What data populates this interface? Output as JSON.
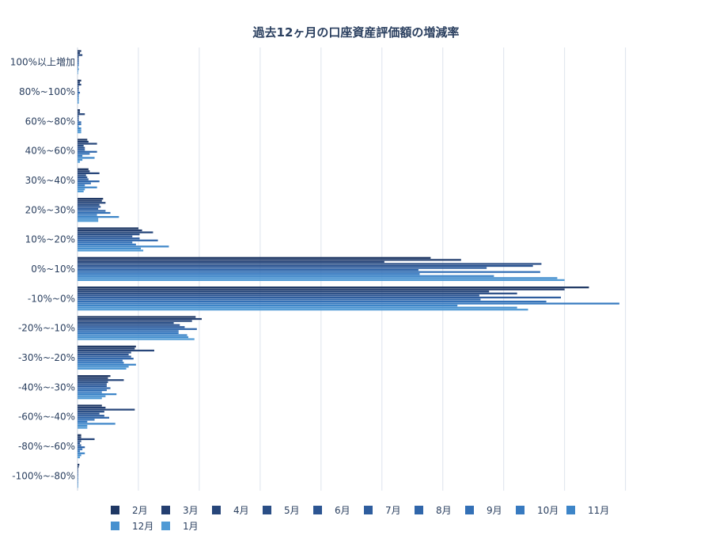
{
  "chart_data": {
    "type": "bar",
    "orientation": "horizontal",
    "title": "過去12ヶ月の口座資産評価額の増減率",
    "xlabel": "",
    "ylabel": "",
    "grid": true,
    "legend_position": "bottom",
    "categories": [
      "100%以上増加",
      "80%~100%",
      "60%~80%",
      "40%~60%",
      "30%~40%",
      "20%~30%",
      "10%~20%",
      "0%~10%",
      "-10%~0%",
      "-20%~-10%",
      "-30%~-20%",
      "-40%~-30%",
      "-60%~-40%",
      "-80%~-60%",
      "-100%~-80%"
    ],
    "series": [
      {
        "name": "2月",
        "color": "#1f3864",
        "values": [
          0.3,
          0.3,
          0.2,
          0.8,
          0.9,
          2.1,
          5.0,
          29.0,
          42.0,
          9.7,
          4.8,
          2.7,
          2.0,
          0.3,
          0.15
        ]
      },
      {
        "name": "3月",
        "color": "#243f70",
        "values": [
          0.2,
          0.2,
          0.2,
          0.9,
          1.0,
          2.0,
          5.3,
          31.5,
          40.0,
          10.2,
          4.7,
          2.5,
          2.3,
          0.3,
          0.1
        ]
      },
      {
        "name": "4月",
        "color": "#27467a",
        "values": [
          0.4,
          0.3,
          0.6,
          1.6,
          1.8,
          2.3,
          6.2,
          25.2,
          33.8,
          9.4,
          6.3,
          3.8,
          4.7,
          1.4,
          0.05
        ]
      },
      {
        "name": "5月",
        "color": "#2a4e86",
        "values": [
          0.1,
          0.1,
          0.1,
          0.5,
          0.7,
          1.8,
          5.1,
          38.1,
          36.1,
          7.9,
          4.4,
          2.5,
          2.2,
          0.3,
          0.05
        ]
      },
      {
        "name": "6月",
        "color": "#2c5592",
        "values": [
          0.1,
          0.1,
          0.1,
          0.6,
          0.8,
          1.9,
          4.5,
          37.4,
          33.0,
          8.4,
          4.2,
          2.4,
          1.8,
          0.2,
          0.05
        ]
      },
      {
        "name": "7月",
        "color": "#2e5d9e",
        "values": [
          0.1,
          0.1,
          0.1,
          0.6,
          0.9,
          1.7,
          5.1,
          33.6,
          39.7,
          8.8,
          4.4,
          2.4,
          2.2,
          0.3,
          0.05
        ]
      },
      {
        "name": "8月",
        "color": "#3066aa",
        "values": [
          0.1,
          0.2,
          0.3,
          1.6,
          1.8,
          2.3,
          6.6,
          28.0,
          33.1,
          9.8,
          4.6,
          2.7,
          2.6,
          0.6,
          0.05
        ]
      },
      {
        "name": "9月",
        "color": "#3370b6",
        "values": [
          0.1,
          0.1,
          0.3,
          1.0,
          1.1,
          2.7,
          4.5,
          38.0,
          38.5,
          8.3,
          3.7,
          2.4,
          1.4,
          0.4,
          0.05
        ]
      },
      {
        "name": "10月",
        "color": "#377ac0",
        "values": [
          0.05,
          0.1,
          0.1,
          0.4,
          0.6,
          1.6,
          4.8,
          28.1,
          44.5,
          8.3,
          3.8,
          2.0,
          0.8,
          0.2,
          0.05
        ]
      },
      {
        "name": "11月",
        "color": "#3d85c8",
        "values": [
          0.1,
          0.1,
          0.3,
          1.4,
          1.6,
          3.4,
          7.5,
          34.2,
          31.2,
          9.0,
          4.8,
          3.2,
          3.1,
          0.6,
          0.05
        ]
      },
      {
        "name": "12月",
        "color": "#4690cf",
        "values": [
          0.05,
          0.1,
          0.3,
          0.4,
          0.6,
          1.7,
          5.2,
          39.4,
          36.1,
          9.1,
          4.2,
          2.3,
          0.8,
          0.3,
          0.05
        ]
      },
      {
        "name": "1月",
        "color": "#509ad5",
        "values": [
          0.05,
          0.1,
          0.3,
          0.2,
          0.5,
          1.7,
          5.4,
          40.0,
          37.0,
          9.6,
          4.0,
          2.0,
          0.8,
          0.2,
          0.05
        ]
      }
    ],
    "xlim": [
      0,
      46
    ]
  }
}
